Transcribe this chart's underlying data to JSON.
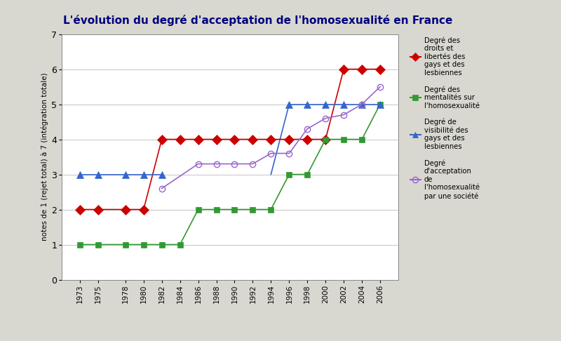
{
  "title": "L'évolution du degré d'acceptation de l'homosexualité en France",
  "ylabel": "notes de 1 (rejet total) à 7 (intégration totale)",
  "ylim": [
    0,
    7
  ],
  "yticks": [
    0,
    1,
    2,
    3,
    4,
    5,
    6,
    7
  ],
  "fig_bgcolor": "#d8d8d0",
  "plot_bgcolor": "#ffffff",
  "title_bgcolor": "#ffffff",
  "series": [
    {
      "label": "Degré des\ndroits et\nlibertés des\ngays et des\nlesbiennes",
      "color": "#cc0000",
      "marker": "D",
      "markersize": 7,
      "linewidth": 1.2,
      "years": [
        1973,
        1975,
        1978,
        1980,
        1982,
        1984,
        1986,
        1988,
        1990,
        1992,
        1994,
        1996,
        1998,
        2000,
        2002,
        2004,
        2006
      ],
      "values": [
        2,
        2,
        2,
        2,
        4,
        4,
        4,
        4,
        4,
        4,
        4,
        4,
        4,
        4,
        6,
        6,
        6
      ]
    },
    {
      "label": "Degré des\nmentalités sur\nl'homosexualité",
      "color": "#339933",
      "marker": "s",
      "markersize": 6,
      "linewidth": 1.2,
      "years": [
        1973,
        1975,
        1978,
        1980,
        1982,
        1984,
        1986,
        1988,
        1990,
        1992,
        1994,
        1996,
        1998,
        2000,
        2002,
        2004,
        2006
      ],
      "values": [
        1,
        1,
        1,
        1,
        1,
        1,
        2,
        2,
        2,
        2,
        2,
        3,
        3,
        4,
        4,
        4,
        5
      ]
    },
    {
      "label": "Degré de\nvisibilité des\ngays et des\nlesbiennes",
      "color": "#3366cc",
      "marker": "^",
      "markersize": 7,
      "linewidth": 1.2,
      "segment1_years": [
        1973,
        1975,
        1978,
        1980,
        1982
      ],
      "segment1_values": [
        3,
        3,
        3,
        3,
        3
      ],
      "segment2_years": [
        1996,
        1998,
        2000,
        2002,
        2004,
        2006
      ],
      "segment2_values": [
        5,
        5,
        5,
        5,
        5,
        5
      ],
      "jump_years": [
        1994,
        1996
      ],
      "jump_values": [
        3,
        5
      ]
    },
    {
      "label": "Degré\nd'acceptation\nde\nl'homosexualité\npar une société",
      "color": "#9966cc",
      "marker": "o",
      "markersize": 6,
      "linewidth": 1.2,
      "years": [
        1982,
        1986,
        1988,
        1990,
        1992,
        1994,
        1996,
        1998,
        2000,
        2002,
        2004,
        2006
      ],
      "values": [
        2.6,
        3.3,
        3.3,
        3.3,
        3.3,
        3.6,
        3.6,
        4.3,
        4.6,
        4.7,
        5.0,
        5.5
      ]
    }
  ],
  "xtick_years": [
    1973,
    1975,
    1978,
    1980,
    1982,
    1984,
    1986,
    1988,
    1990,
    1992,
    1994,
    1996,
    1998,
    2000,
    2002,
    2004,
    2006
  ],
  "legend_entries": [
    {
      "label": "Degré des\ndroits et\nlibertés des\ngays et des\nlesbiennes",
      "color": "#cc0000",
      "marker": "D"
    },
    {
      "label": "Degré des\nmentalités sur\nl'homosexualité",
      "color": "#339933",
      "marker": "s"
    },
    {
      "label": "Degré de\nvisibilité des\ngays et des\nlesbiennes",
      "color": "#3366cc",
      "marker": "^"
    },
    {
      "label": "Degré\nd'acceptation\nde\nl'homosexualité\npar une société",
      "color": "#9966cc",
      "marker": "o"
    }
  ]
}
